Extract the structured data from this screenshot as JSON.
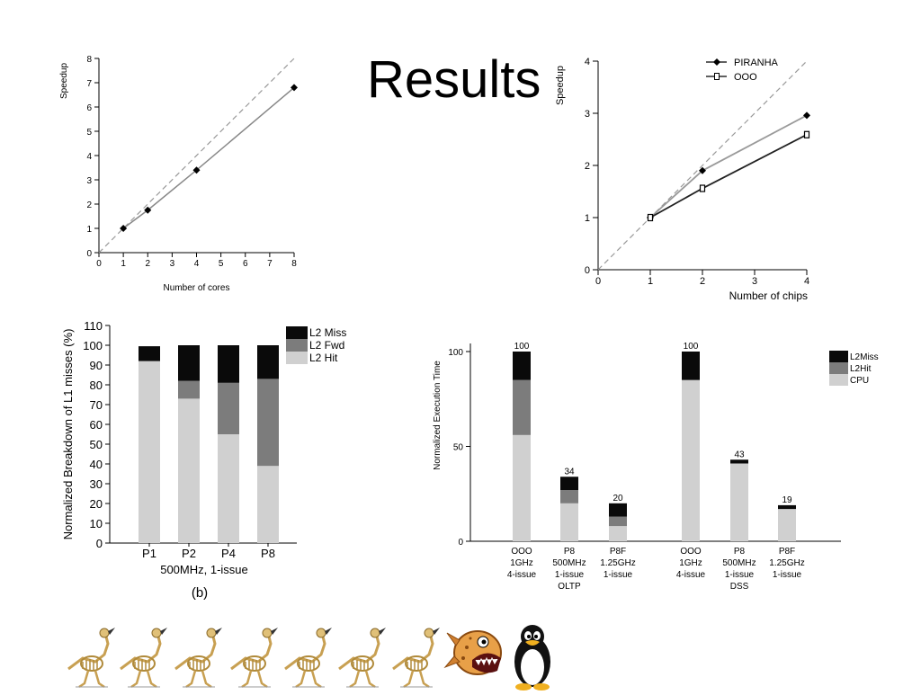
{
  "slide": {
    "title": "Results"
  },
  "chart_data": [
    {
      "type": "line",
      "xlabel": "Number of cores",
      "ylabel": "Speedup",
      "xlim": [
        0,
        8
      ],
      "ylim": [
        0,
        8
      ],
      "xticks": [
        "0",
        "1",
        "2",
        "3",
        "4",
        "5",
        "6",
        "7",
        "8"
      ],
      "yticks": [
        "0",
        "1",
        "2",
        "3",
        "4",
        "5",
        "6",
        "7",
        "8"
      ],
      "x": [
        1,
        2,
        4,
        8
      ],
      "series": [
        {
          "values": [
            1,
            1.75,
            3.4,
            6.8
          ]
        }
      ],
      "reference": "diagonal dashed line (linear speedup)",
      "grid": false
    },
    {
      "type": "line",
      "xlabel": "Number of chips",
      "ylabel": "Speedup",
      "xlim": [
        0,
        4
      ],
      "ylim": [
        0,
        4
      ],
      "xticks": [
        "0",
        "1",
        "2",
        "3",
        "4"
      ],
      "yticks": [
        "0",
        "1",
        "2",
        "3",
        "4"
      ],
      "x": [
        1,
        2,
        4
      ],
      "series": [
        {
          "name": "PIRANHA",
          "values": [
            1,
            1.9,
            2.96
          ],
          "color": "#9a9a9a",
          "marker": "diamond"
        },
        {
          "name": "OOO",
          "values": [
            1,
            1.56,
            2.59
          ],
          "color": "#222222",
          "marker": "open-square"
        }
      ],
      "legend": "top-right",
      "reference": "diagonal dashed line (linear speedup)",
      "grid": false
    },
    {
      "type": "bar",
      "stacked": true,
      "ylabel": "Normalized Breakdown of L1 misses (%)",
      "xlabel": "500MHz, 1-issue",
      "caption": "(b)",
      "ylim": [
        0,
        110
      ],
      "yticks": [
        "0",
        "10",
        "20",
        "30",
        "40",
        "50",
        "60",
        "70",
        "80",
        "90",
        "100",
        "110"
      ],
      "categories": [
        "P1",
        "P2",
        "P4",
        "P8"
      ],
      "series": [
        {
          "name": "L2 Hit",
          "values": [
            92,
            73,
            55,
            39
          ],
          "color": "#d0d0d0"
        },
        {
          "name": "L2 Fwd",
          "values": [
            0,
            9,
            26,
            44
          ],
          "color": "#7c7c7c"
        },
        {
          "name": "L2 Miss",
          "values": [
            7.5,
            18,
            19,
            17
          ],
          "color": "#0a0a0a"
        }
      ],
      "legend": "top-right"
    },
    {
      "type": "bar",
      "stacked": true,
      "ylabel": "Normalized Execution Time",
      "ylim": [
        0,
        100
      ],
      "yticks": [
        "0",
        "50",
        "100"
      ],
      "categories": [
        [
          "OOO",
          "1GHz",
          "4-issue"
        ],
        [
          "P8",
          "500MHz",
          "1-issue"
        ],
        [
          "P8F",
          "1.25GHz",
          "1-issue"
        ],
        [
          "OOO",
          "1GHz",
          "4-issue"
        ],
        [
          "P8",
          "500MHz",
          "1-issue"
        ],
        [
          "P8F",
          "1.25GHz",
          "1-issue"
        ]
      ],
      "groups": [
        {
          "name": "OLTP",
          "bars": [
            0,
            1,
            2
          ]
        },
        {
          "name": "DSS",
          "bars": [
            3,
            4,
            5
          ]
        }
      ],
      "totals": [
        "100",
        "34",
        "20",
        "100",
        "43",
        "19"
      ],
      "series": [
        {
          "name": "CPU",
          "values": [
            56,
            20,
            8,
            85,
            41,
            17
          ],
          "color": "#d0d0d0"
        },
        {
          "name": "L2Hit",
          "values": [
            29,
            7,
            5,
            0,
            0,
            0
          ],
          "color": "#7c7c7c"
        },
        {
          "name": "L2Miss",
          "values": [
            15,
            7,
            7,
            15,
            2,
            2
          ],
          "color": "#0a0a0a"
        }
      ],
      "legend": "top-right"
    }
  ],
  "footer": {
    "mascots": [
      {
        "icon": "bird-skeleton-icon"
      },
      {
        "icon": "bird-skeleton-icon"
      },
      {
        "icon": "bird-skeleton-icon"
      },
      {
        "icon": "bird-skeleton-icon"
      },
      {
        "icon": "bird-skeleton-icon"
      },
      {
        "icon": "bird-skeleton-icon"
      },
      {
        "icon": "bird-skeleton-icon"
      },
      {
        "icon": "piranha-icon"
      },
      {
        "icon": "penguin-icon"
      }
    ]
  }
}
